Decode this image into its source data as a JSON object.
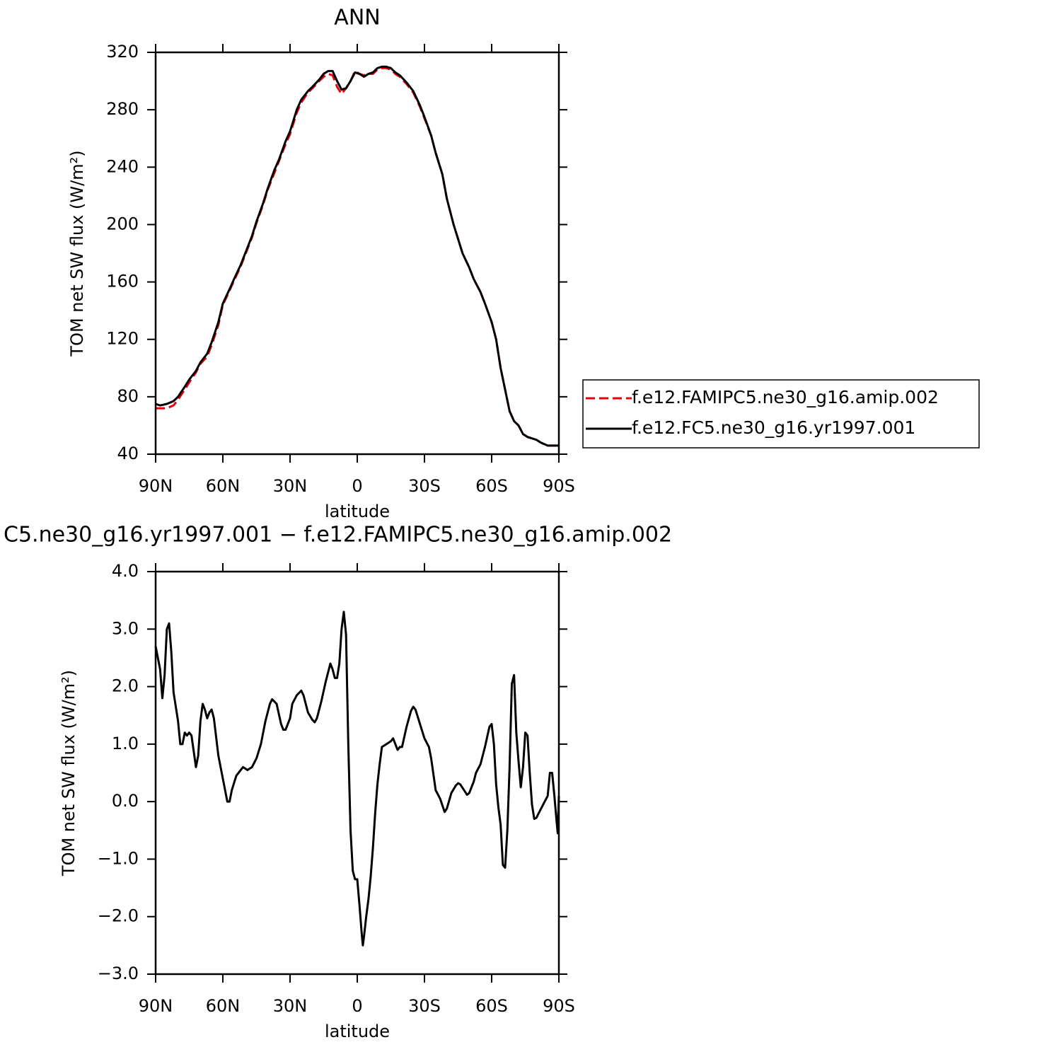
{
  "chart_data": [
    {
      "type": "line",
      "title": "ANN",
      "xlabel": "latitude",
      "ylabel": "TOM net SW flux (W/m²)",
      "x": [
        90,
        88,
        85,
        82,
        80,
        77,
        75,
        72,
        70,
        67,
        65,
        62,
        60,
        57,
        55,
        52,
        50,
        47,
        45,
        42,
        40,
        37,
        35,
        32,
        30,
        27,
        25,
        22,
        20,
        17,
        15,
        13,
        11,
        9,
        7,
        5,
        3,
        1,
        -1,
        -3,
        -5,
        -7,
        -9,
        -11,
        -13,
        -15,
        -17,
        -19,
        -22,
        -25,
        -28,
        -30,
        -33,
        -35,
        -38,
        -40,
        -43,
        -45,
        -47,
        -50,
        -52,
        -55,
        -57,
        -60,
        -62,
        -64,
        -66,
        -68,
        -70,
        -72,
        -74,
        -76,
        -78,
        -80,
        -82,
        -85,
        -88,
        -90
      ],
      "series": [
        {
          "name": "f.e12.FAMIPC5.ne30_g16.amip.002",
          "color": "#e8000b",
          "dashed": true,
          "values": [
            72,
            72,
            72,
            74,
            78,
            85,
            90,
            97,
            103,
            108,
            116,
            130,
            144,
            154,
            161,
            171,
            179,
            191,
            201,
            214,
            224,
            236,
            244,
            256,
            263,
            278,
            285,
            292,
            295,
            300,
            303,
            305,
            304,
            296,
            291,
            295,
            300,
            307,
            305,
            304,
            305,
            305,
            308,
            309,
            309,
            308,
            305,
            303,
            298,
            292,
            282,
            274,
            262,
            250,
            235,
            218,
            200,
            190,
            180,
            170,
            162,
            153,
            145,
            132,
            120,
            100,
            85,
            70,
            63,
            60,
            54,
            52,
            51,
            50,
            48,
            46,
            46,
            46
          ]
        },
        {
          "name": "f.e12.FC5.ne30_g16.yr1997.001",
          "color": "#000000",
          "dashed": false,
          "values": [
            75,
            74,
            75,
            77,
            80,
            87,
            92,
            98,
            104,
            110,
            118,
            132,
            145,
            155,
            162,
            172,
            180,
            192,
            202,
            215,
            225,
            238,
            245,
            258,
            265,
            280,
            287,
            293,
            296,
            301,
            305,
            307,
            307,
            300,
            294,
            295,
            300,
            306,
            305,
            303,
            305,
            306,
            309,
            310,
            310,
            309,
            306,
            304,
            299,
            293,
            283,
            275,
            262,
            250,
            235,
            218,
            200,
            190,
            180,
            170,
            162,
            153,
            145,
            132,
            120,
            100,
            85,
            70,
            63,
            60,
            54,
            52,
            51,
            50,
            48,
            46,
            46,
            46
          ]
        }
      ],
      "xlim": [
        90,
        -90
      ],
      "xticks": [
        {
          "value": 90,
          "label": "90N"
        },
        {
          "value": 60,
          "label": "60N"
        },
        {
          "value": 30,
          "label": "30N"
        },
        0,
        {
          "value": -30,
          "label": "30S"
        },
        {
          "value": -60,
          "label": "60S"
        },
        {
          "value": -90,
          "label": "90S"
        }
      ],
      "ylim": [
        40,
        320
      ],
      "yticks": [
        40,
        80,
        120,
        160,
        200,
        240,
        280,
        320
      ],
      "legend": "right"
    },
    {
      "type": "line",
      "title": "C5.ne30_g16.yr1997.001 − f.e12.FAMIPC5.ne30_g16.amip.002",
      "xlabel": "latitude",
      "ylabel": "TOM net SW flux (W/m²)",
      "x": [
        90,
        88,
        87,
        86,
        85,
        84,
        83,
        82,
        80,
        79,
        78,
        77,
        76,
        75,
        74,
        72,
        71,
        70,
        69,
        68,
        67,
        66,
        65,
        64,
        62,
        60,
        58,
        57,
        56,
        54,
        52,
        51,
        49,
        47,
        45,
        43,
        41,
        39,
        38,
        36,
        34,
        33,
        32,
        30,
        29,
        27,
        25,
        24,
        22,
        20,
        19,
        18,
        16,
        14,
        12,
        11,
        10,
        9,
        8,
        7,
        6,
        5,
        4,
        3,
        2,
        1,
        0,
        -1,
        -2,
        -2.5,
        -3,
        -4,
        -5,
        -6,
        -7,
        -8,
        -9,
        -10,
        -11,
        -13,
        -15,
        -16,
        -18,
        -19,
        -20,
        -22,
        -24,
        -25,
        -26,
        -28,
        -30,
        -32,
        -33,
        -35,
        -37,
        -39,
        -40,
        -42,
        -44,
        -45,
        -46,
        -48,
        -49,
        -50,
        -52,
        -53,
        -55,
        -56,
        -57,
        -59,
        -60,
        -61,
        -62,
        -63,
        -64,
        -65,
        -66,
        -67,
        -68,
        -69,
        -70,
        -71,
        -72,
        -73,
        -74,
        -75,
        -76,
        -77,
        -78,
        -79,
        -80,
        -81,
        -83,
        -85,
        -86,
        -87,
        -88,
        -89,
        -89.5,
        -90
      ],
      "series": [
        {
          "color": "#000000",
          "dashed": false,
          "values": [
            2.7,
            2.3,
            1.8,
            2.2,
            3.0,
            3.1,
            2.6,
            1.9,
            1.4,
            1.0,
            1.0,
            1.2,
            1.15,
            1.2,
            1.15,
            0.6,
            0.8,
            1.4,
            1.7,
            1.6,
            1.45,
            1.55,
            1.6,
            1.45,
            0.8,
            0.4,
            0.0,
            0.0,
            0.2,
            0.45,
            0.55,
            0.6,
            0.55,
            0.6,
            0.75,
            1.0,
            1.4,
            1.7,
            1.78,
            1.7,
            1.35,
            1.25,
            1.25,
            1.45,
            1.7,
            1.85,
            1.93,
            1.85,
            1.55,
            1.42,
            1.38,
            1.45,
            1.75,
            2.1,
            2.4,
            2.3,
            2.15,
            2.15,
            2.4,
            3.0,
            3.3,
            2.9,
            1.0,
            -0.5,
            -1.2,
            -1.35,
            -1.35,
            -1.8,
            -2.3,
            -2.5,
            -2.35,
            -2.0,
            -1.7,
            -1.3,
            -0.8,
            -0.2,
            0.3,
            0.65,
            0.95,
            1.0,
            1.05,
            1.1,
            0.9,
            0.95,
            0.95,
            1.3,
            1.58,
            1.65,
            1.6,
            1.35,
            1.1,
            0.95,
            0.75,
            0.2,
            0.05,
            -0.18,
            -0.12,
            0.15,
            0.28,
            0.32,
            0.3,
            0.18,
            0.12,
            0.15,
            0.35,
            0.5,
            0.65,
            0.8,
            0.95,
            1.3,
            1.35,
            1.0,
            0.3,
            -0.1,
            -0.4,
            -1.1,
            -1.15,
            -0.5,
            0.6,
            2.05,
            2.2,
            1.2,
            0.7,
            0.25,
            0.6,
            1.2,
            1.15,
            0.5,
            -0.05,
            -0.3,
            -0.28,
            -0.2,
            -0.05,
            0.1,
            0.5,
            0.5,
            0.1,
            -0.35,
            -0.55,
            0.1
          ]
        }
      ],
      "xlim": [
        90,
        -90
      ],
      "xticks": [
        {
          "value": 90,
          "label": "90N"
        },
        {
          "value": 60,
          "label": "60N"
        },
        {
          "value": 30,
          "label": "30N"
        },
        0,
        {
          "value": -30,
          "label": "30S"
        },
        {
          "value": -60,
          "label": "60S"
        },
        {
          "value": -90,
          "label": "90S"
        }
      ],
      "ylim": [
        -3,
        4
      ],
      "yticks": [
        {
          "value": -3,
          "label": "−3.0"
        },
        {
          "value": -2,
          "label": "−2.0"
        },
        {
          "value": -1,
          "label": "−1.0"
        },
        {
          "value": 0,
          "label": "0.0"
        },
        {
          "value": 1,
          "label": "1.0"
        },
        {
          "value": 2,
          "label": "2.0"
        },
        {
          "value": 3,
          "label": "3.0"
        },
        {
          "value": 4,
          "label": "4.0"
        }
      ]
    }
  ]
}
